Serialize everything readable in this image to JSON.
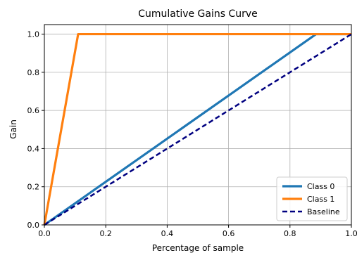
{
  "chart_data": {
    "type": "line",
    "title": "Cumulative Gains Curve",
    "xlabel": "Percentage of sample",
    "ylabel": "Gain",
    "xlim": [
      0.0,
      1.0
    ],
    "ylim": [
      0.0,
      1.05
    ],
    "xticks": [
      "0.0",
      "0.2",
      "0.4",
      "0.6",
      "0.8",
      "1.0"
    ],
    "yticks": [
      "0.0",
      "0.2",
      "0.4",
      "0.6",
      "0.8",
      "1.0"
    ],
    "grid": true,
    "legend_position": "lower-right",
    "series": [
      {
        "name": "Class 0",
        "color": "#1f77b4",
        "dash": "solid",
        "x": [
          0.0,
          0.885,
          1.0
        ],
        "y": [
          0.0,
          1.0,
          1.0
        ]
      },
      {
        "name": "Class 1",
        "color": "#ff7f0e",
        "dash": "solid",
        "x": [
          0.0,
          0.11,
          1.0
        ],
        "y": [
          0.0,
          1.0,
          1.0
        ]
      },
      {
        "name": "Baseline",
        "color": "#000080",
        "dash": "dashed",
        "x": [
          0.0,
          1.0
        ],
        "y": [
          0.0,
          1.0
        ]
      }
    ]
  }
}
